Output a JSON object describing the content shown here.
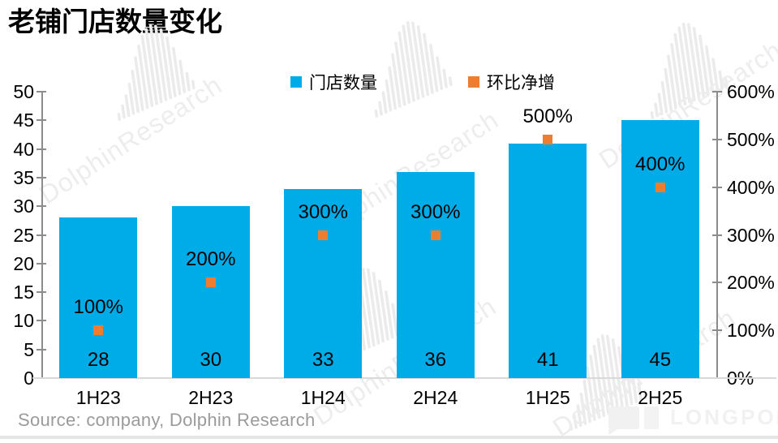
{
  "title": "老铺门店数量变化",
  "source": "Source: company, Dolphin Research",
  "watermark": {
    "text": "DolphinResearch",
    "brand": "LONGPORT"
  },
  "colors": {
    "bar_blue": "#00ACE8",
    "marker_orange": "#ED7D31",
    "axis_gray": "#8c8c8c",
    "baseline_gray": "#d9d9d9",
    "source_gray": "#9b9b9b",
    "watermark_gray": "#ededed"
  },
  "chart_data": {
    "type": "bar",
    "title": "老铺门店数量变化",
    "categories": [
      "1H23",
      "2H23",
      "1H24",
      "2H24",
      "1H25",
      "2H25"
    ],
    "series": [
      {
        "name": "门店数量",
        "type": "bar",
        "axis": "left",
        "color": "#00ACE8",
        "values": [
          28,
          30,
          33,
          36,
          41,
          45
        ],
        "value_labels": [
          "28",
          "30",
          "33",
          "36",
          "41",
          "45"
        ]
      },
      {
        "name": "环比净增",
        "type": "scatter",
        "axis": "right",
        "color": "#ED7D31",
        "values_pct": [
          100,
          200,
          300,
          300,
          500,
          400
        ],
        "point_labels": [
          "100%",
          "200%",
          "300%",
          "300%",
          "500%",
          "400%"
        ]
      }
    ],
    "left_axis": {
      "min": 0,
      "max": 50,
      "step": 5,
      "ticks": [
        "0",
        "5",
        "10",
        "15",
        "20",
        "25",
        "30",
        "35",
        "40",
        "45",
        "50"
      ]
    },
    "right_axis": {
      "min": 0,
      "max": 600,
      "step": 100,
      "ticks": [
        "0%",
        "100%",
        "200%",
        "300%",
        "400%",
        "500%",
        "600%"
      ]
    },
    "legend_position": "top",
    "grid": false
  }
}
